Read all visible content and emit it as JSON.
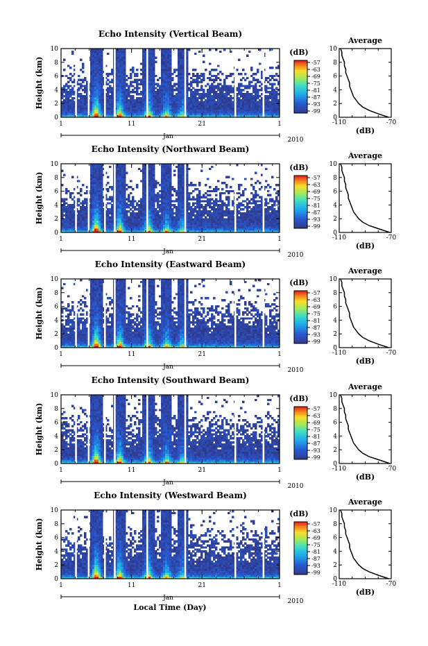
{
  "common": {
    "xlabel": "Local Time (Day)",
    "month_label": "Jan",
    "year_label": "2010",
    "x_ticks": [
      "1",
      "11",
      "21",
      "1"
    ],
    "y_label": "Height (km)",
    "y_ticks": [
      "0",
      "2",
      "4",
      "6",
      "8",
      "10"
    ],
    "colorbar_unit": "(dB)",
    "colorbar_ticks": [
      "-57",
      "-63",
      "-69",
      "-75",
      "-81",
      "-87",
      "-93",
      "-99"
    ],
    "avg_title": "Average",
    "avg_xlabel": "(dB)",
    "avg_x_ticks": [
      "-110",
      "-70"
    ]
  },
  "chart_data": [
    {
      "type": "heatmap",
      "title": "Echo Intensity (Vertical Beam)",
      "x_range": [
        1,
        32
      ],
      "ylim": [
        0,
        10
      ],
      "clim": [
        -99,
        -57
      ],
      "avg_profile": {
        "xlim": [
          -110,
          -70
        ],
        "height_km": [
          0,
          0.5,
          1,
          1.5,
          2,
          2.5,
          3,
          3.5,
          4,
          4.5,
          5,
          5.5,
          6,
          6.5,
          7,
          7.5,
          8,
          8.5,
          9,
          9.5,
          10
        ],
        "db": [
          -72,
          -80,
          -87,
          -92,
          -95,
          -97,
          -99,
          -100,
          -101,
          -102,
          -102,
          -103,
          -104,
          -105,
          -105,
          -106,
          -106,
          -107,
          -108,
          -108,
          -109
        ]
      }
    },
    {
      "type": "heatmap",
      "title": "Echo Intensity (Northward Beam)",
      "x_range": [
        1,
        32
      ],
      "ylim": [
        0,
        10
      ],
      "clim": [
        -99,
        -57
      ],
      "avg_profile": {
        "xlim": [
          -110,
          -70
        ],
        "height_km": [
          0,
          0.5,
          1,
          1.5,
          2,
          2.5,
          3,
          3.5,
          4,
          4.5,
          5,
          5.5,
          6,
          6.5,
          7,
          7.5,
          8,
          8.5,
          9,
          9.5,
          10
        ],
        "db": [
          -71,
          -79,
          -87,
          -92,
          -95,
          -97,
          -99,
          -100,
          -101,
          -102,
          -103,
          -103,
          -104,
          -105,
          -105,
          -106,
          -106,
          -107,
          -108,
          -108,
          -109
        ]
      }
    },
    {
      "type": "heatmap",
      "title": "Echo Intensity (Eastward Beam)",
      "x_range": [
        1,
        32
      ],
      "ylim": [
        0,
        10
      ],
      "clim": [
        -99,
        -57
      ],
      "avg_profile": {
        "xlim": [
          -110,
          -70
        ],
        "height_km": [
          0,
          0.5,
          1,
          1.5,
          2,
          2.5,
          3,
          3.5,
          4,
          4.5,
          5,
          5.5,
          6,
          6.5,
          7,
          7.5,
          8,
          8.5,
          9,
          9.5,
          10
        ],
        "db": [
          -72,
          -80,
          -87,
          -92,
          -95,
          -97,
          -99,
          -100,
          -101,
          -102,
          -102,
          -103,
          -104,
          -105,
          -105,
          -106,
          -106,
          -107,
          -108,
          -108,
          -109
        ]
      }
    },
    {
      "type": "heatmap",
      "title": "Echo Intensity (Southward Beam)",
      "x_range": [
        1,
        32
      ],
      "ylim": [
        0,
        10
      ],
      "clim": [
        -99,
        -57
      ],
      "avg_profile": {
        "xlim": [
          -110,
          -70
        ],
        "height_km": [
          0,
          0.5,
          1,
          1.5,
          2,
          2.5,
          3,
          3.5,
          4,
          4.5,
          5,
          5.5,
          6,
          6.5,
          7,
          7.5,
          8,
          8.5,
          9,
          9.5,
          10
        ],
        "db": [
          -71,
          -79,
          -87,
          -92,
          -95,
          -97,
          -99,
          -100,
          -101,
          -102,
          -103,
          -103,
          -104,
          -105,
          -105,
          -106,
          -106,
          -107,
          -108,
          -108,
          -109
        ]
      }
    },
    {
      "type": "heatmap",
      "title": "Echo Intensity (Westward Beam)",
      "x_range": [
        1,
        32
      ],
      "ylim": [
        0,
        10
      ],
      "clim": [
        -99,
        -57
      ],
      "avg_profile": {
        "xlim": [
          -110,
          -70
        ],
        "height_km": [
          0,
          0.5,
          1,
          1.5,
          2,
          2.5,
          3,
          3.5,
          4,
          4.5,
          5,
          5.5,
          6,
          6.5,
          7,
          7.5,
          8,
          8.5,
          9,
          9.5,
          10
        ],
        "db": [
          -72,
          -80,
          -87,
          -92,
          -95,
          -97,
          -99,
          -100,
          -101,
          -102,
          -102,
          -103,
          -104,
          -105,
          -105,
          -106,
          -106,
          -107,
          -108,
          -108,
          -109
        ]
      }
    }
  ]
}
